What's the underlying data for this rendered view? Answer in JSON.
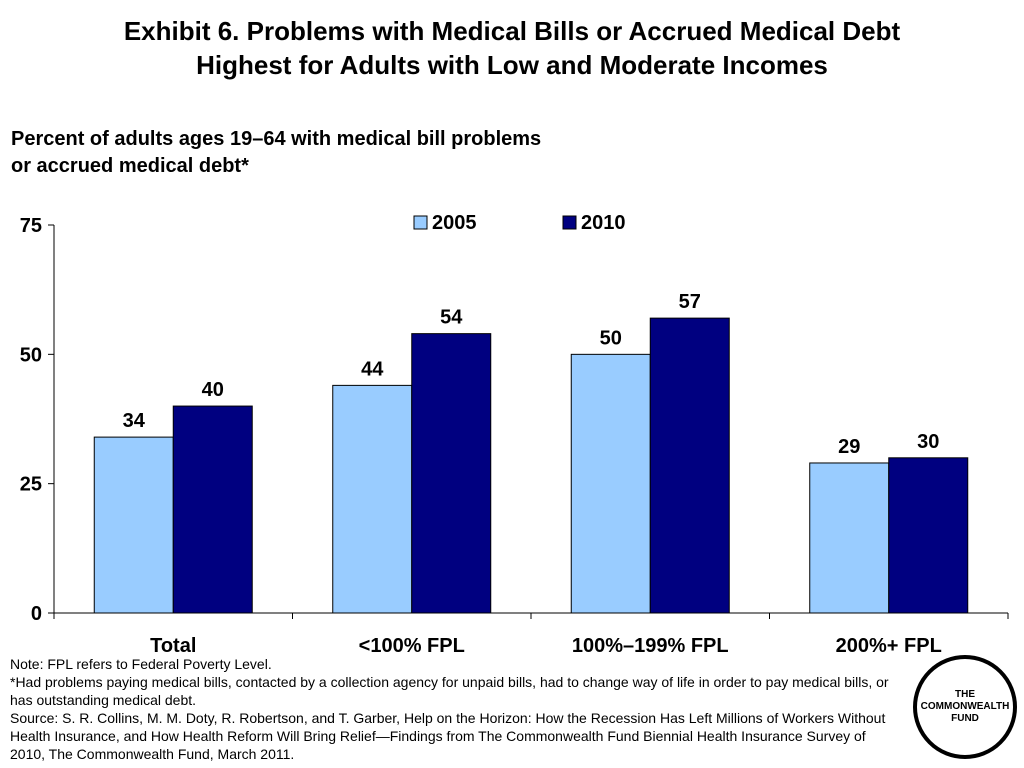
{
  "title": {
    "line1": "Exhibit 6. Problems with Medical Bills or Accrued Medical Debt",
    "line2": "Highest for Adults with Low and Moderate Incomes"
  },
  "subtitle": {
    "line1": "Percent of adults ages 19–64 with medical bill problems",
    "line2": "or accrued medical debt*"
  },
  "chart_data": {
    "type": "bar",
    "categories": [
      "Total",
      "<100% FPL",
      "100%–199% FPL",
      "200%+ FPL"
    ],
    "series": [
      {
        "name": "2005",
        "values": [
          34,
          44,
          50,
          29
        ],
        "color": "#99ccff"
      },
      {
        "name": "2010",
        "values": [
          40,
          54,
          57,
          30
        ],
        "color": "#000080"
      }
    ],
    "ylim": [
      0,
      75
    ],
    "yticks": [
      0,
      25,
      50,
      75
    ],
    "legend": "top",
    "grid": false,
    "data_labels": true
  },
  "notes": {
    "line1": "Note: FPL refers to Federal Poverty Level.",
    "line2": "*Had problems paying medical bills, contacted by a collection agency for unpaid bills, had to change way of life in order to pay medical bills, or has outstanding medical debt.",
    "line3": "Source: S. R. Collins, M. M. Doty, R. Robertson, and T. Garber, Help on the Horizon: How the Recession Has Left Millions of Workers Without Health Insurance, and How Health Reform Will Bring Relief—Findings from The Commonwealth Fund Biennial Health Insurance Survey of 2010, The Commonwealth Fund, March 2011."
  },
  "logo": {
    "line1": "THE",
    "line2": "COMMONWEALTH",
    "line3": "FUND"
  }
}
